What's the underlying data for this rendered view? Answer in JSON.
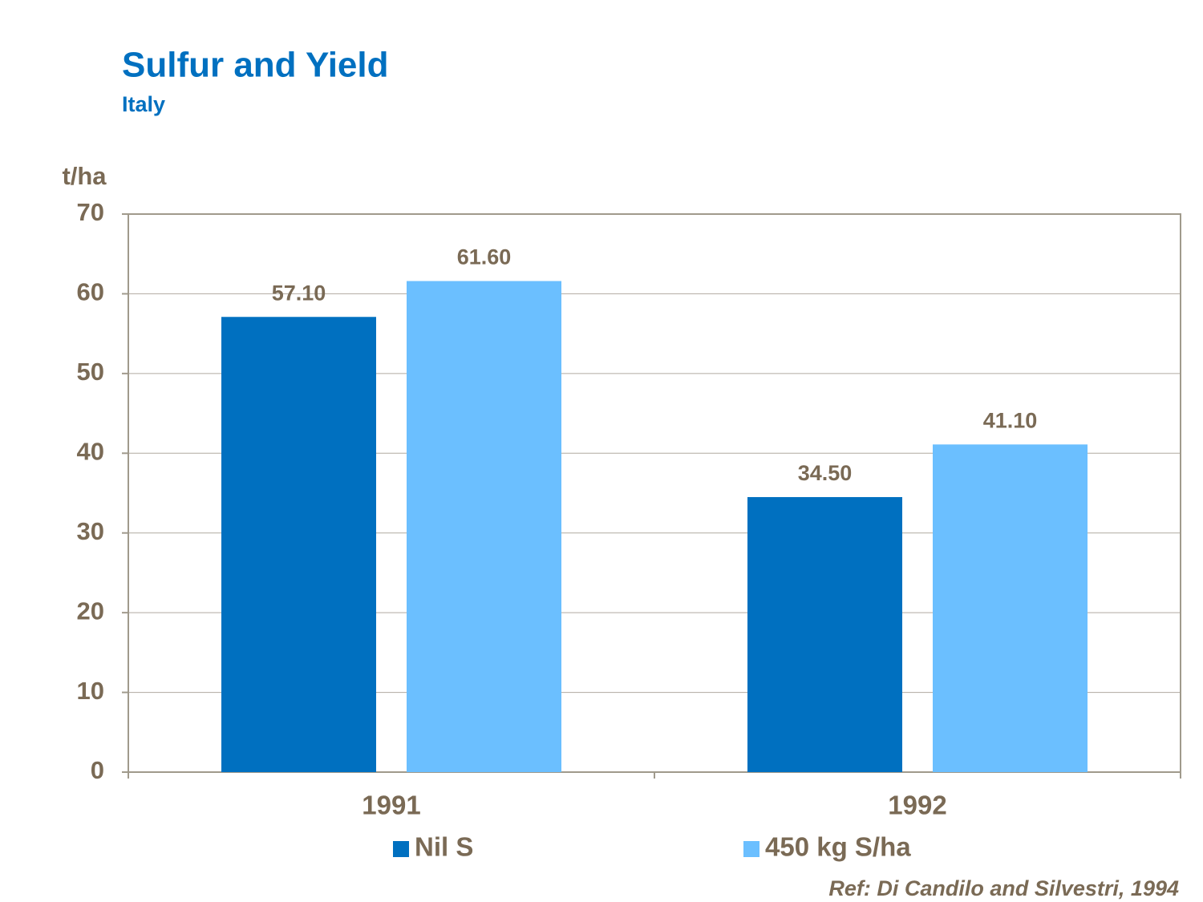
{
  "chart_data": {
    "type": "bar",
    "title": "Sulfur and Yield",
    "subtitle": "Italy",
    "y_label": "t/ha",
    "categories": [
      "1991",
      "1992"
    ],
    "series": [
      {
        "name": "Nil S",
        "color": "#0070c0",
        "values": [
          57.1,
          34.5
        ],
        "value_labels": [
          "57.10",
          "34.50"
        ]
      },
      {
        "name": "450 kg S/ha",
        "color": "#6bbfff",
        "values": [
          61.6,
          41.1
        ],
        "value_labels": [
          "61.60",
          "41.10"
        ]
      }
    ],
    "ylim": [
      0,
      70
    ],
    "yticks": [
      0,
      10,
      20,
      30,
      40,
      50,
      60,
      70
    ],
    "grid": true,
    "legend": "bottom",
    "source": "Ref: Di Candilo and Silvestri, 1994"
  }
}
